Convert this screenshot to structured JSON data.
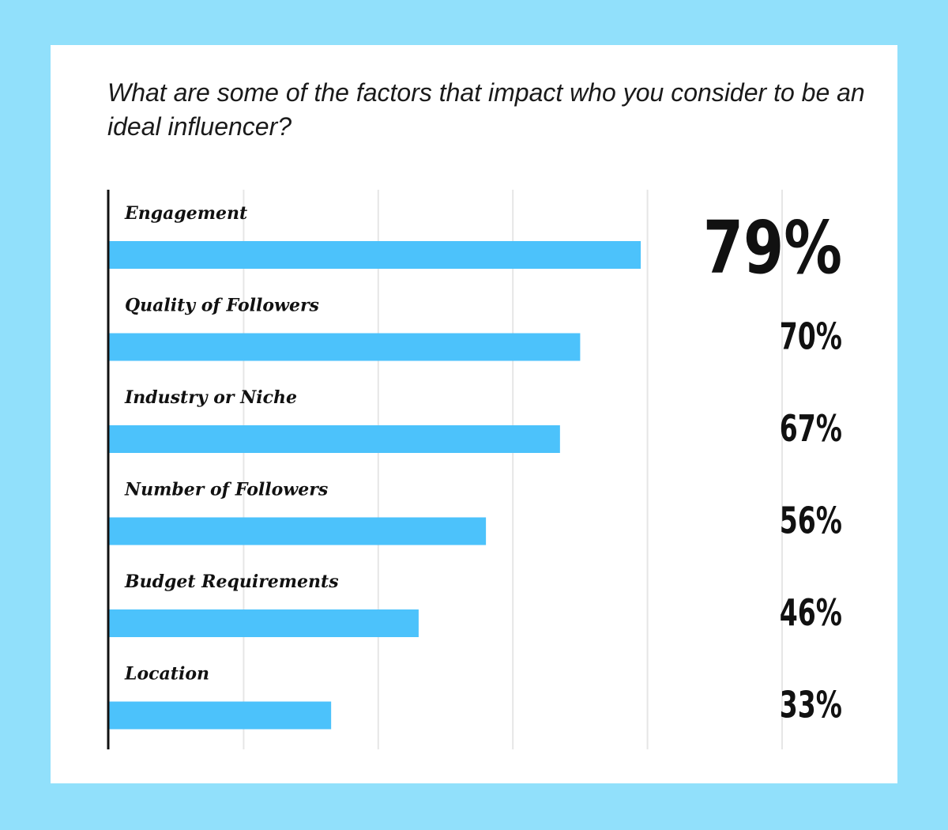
{
  "colors": {
    "background": "#91e0fb",
    "card": "#ffffff",
    "bar": "#4cc2fb",
    "grid": "#e6e6e6",
    "axis": "#111111",
    "text": "#111111"
  },
  "chart_data": {
    "type": "bar",
    "orientation": "horizontal",
    "title": "What are some of the factors that impact who you consider to be an ideal influencer?",
    "categories": [
      "Engagement",
      "Quality of Followers",
      "Industry or Niche",
      "Number of Followers",
      "Budget Requirements",
      "Location"
    ],
    "values": [
      79,
      70,
      67,
      56,
      46,
      33
    ],
    "value_labels": [
      "79%",
      "70%",
      "67%",
      "56%",
      "46%",
      "33%"
    ],
    "xlim": [
      0,
      100
    ],
    "x_gridlines": [
      20,
      40,
      60,
      80,
      100
    ],
    "grid": true,
    "legend": "none",
    "highlight_index": 0
  }
}
